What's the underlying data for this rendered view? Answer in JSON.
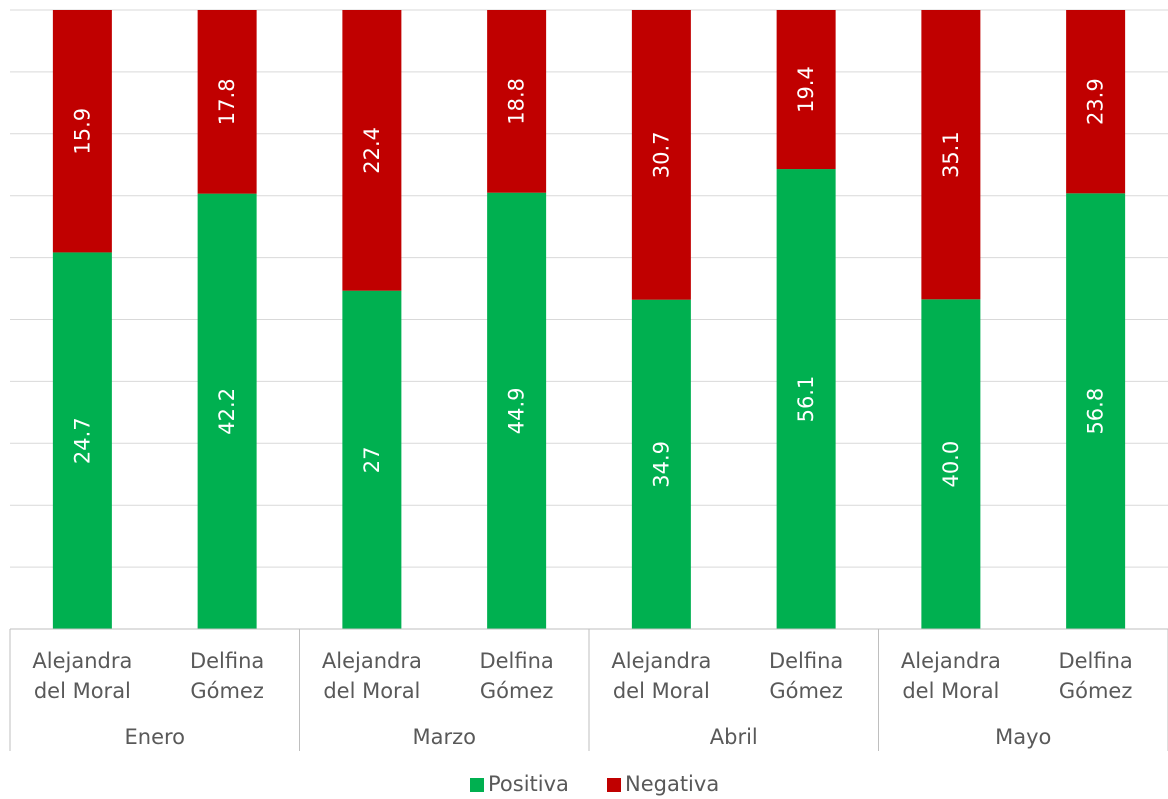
{
  "chart_data": {
    "type": "bar",
    "stacked": true,
    "percent_stacked": true,
    "groups": [
      "Enero",
      "Marzo",
      "Abril",
      "Mayo"
    ],
    "candidates": [
      [
        "Alejandra",
        "del Moral"
      ],
      [
        "Delfina",
        "Gómez"
      ]
    ],
    "series": [
      {
        "name": "Positiva",
        "color": "#00b050",
        "values": [
          24.7,
          42.2,
          27,
          44.9,
          34.9,
          56.1,
          40.0,
          56.8
        ],
        "labels": [
          "24.7",
          "42.2",
          "27",
          "44.9",
          "34.9",
          "56.1",
          "40.0",
          "56.8"
        ]
      },
      {
        "name": "Negativa",
        "color": "#c00000",
        "values": [
          15.9,
          17.8,
          22.4,
          18.8,
          30.7,
          19.4,
          35.1,
          23.9
        ],
        "labels": [
          "15.9",
          "17.8",
          "22.4",
          "18.8",
          "30.7",
          "19.4",
          "35.1",
          "23.9"
        ]
      }
    ],
    "grid": true,
    "legend": "bottom"
  }
}
